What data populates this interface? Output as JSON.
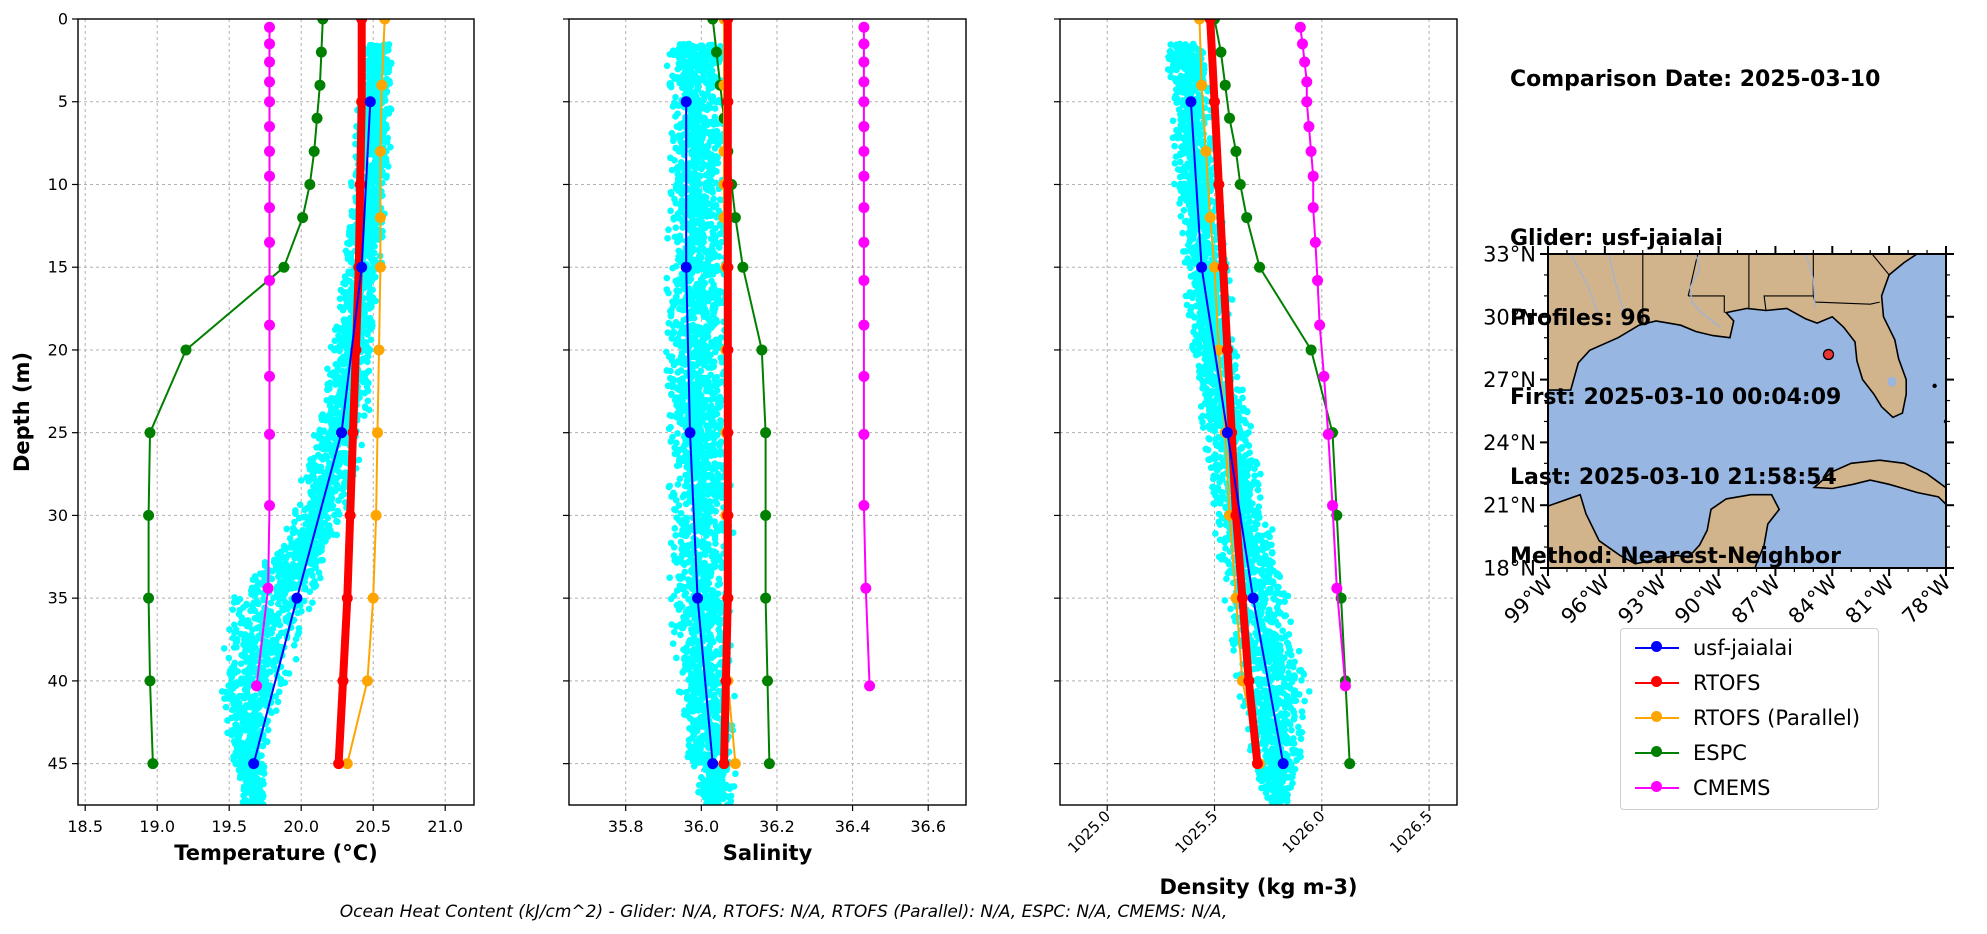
{
  "figure": {
    "info_lines": [
      "Comparison Date: 2025-03-10",
      "",
      "Glider: usf-jaialai",
      "Profiles: 96",
      "First: 2025-03-10 00:04:09",
      "Last: 2025-03-10 21:58:54",
      "Method: Nearest-Neighbor"
    ],
    "footer": "Ocean Heat Content (kJ/cm^2) - Glider: N/A,  RTOFS: N/A,  RTOFS (Parallel): N/A,  ESPC: N/A,  CMEMS: N/A,"
  },
  "legend": [
    {
      "name": "usf-jaialai",
      "color": "#0000ff"
    },
    {
      "name": "RTOFS",
      "color": "#ff0000"
    },
    {
      "name": "RTOFS (Parallel)",
      "color": "#ffa500"
    },
    {
      "name": "ESPC",
      "color": "#008000"
    },
    {
      "name": "CMEMS",
      "color": "#ff00ff"
    }
  ],
  "chart_data": [
    {
      "type": "line",
      "xlabel": "Temperature (°C)",
      "ylabel": "Depth (m)",
      "xlim": [
        18.45,
        21.2
      ],
      "ylim": [
        47.5,
        0
      ],
      "xticks": [
        "18.5",
        "19.0",
        "19.5",
        "20.0",
        "20.5",
        "21.0"
      ],
      "yticks": [
        "0",
        "5",
        "10",
        "15",
        "20",
        "25",
        "30",
        "35",
        "40",
        "45"
      ],
      "grid": true,
      "scatter_color": "#00ffff",
      "scatter_band": [
        [
          1.5,
          20.42,
          20.65
        ],
        [
          10,
          20.35,
          20.6
        ],
        [
          15,
          20.3,
          20.55
        ],
        [
          20,
          20.2,
          20.5
        ],
        [
          25,
          20.1,
          20.45
        ],
        [
          30,
          19.95,
          20.3
        ],
        [
          33,
          19.75,
          20.15
        ],
        [
          35,
          19.5,
          20.1
        ],
        [
          40,
          19.45,
          19.9
        ],
        [
          44,
          19.5,
          19.75
        ],
        [
          47.5,
          19.6,
          19.75
        ]
      ],
      "series": [
        {
          "name": "usf-jaialai",
          "color": "#0000ff",
          "lw": 2,
          "y": [
            5,
            15,
            25,
            35,
            45
          ],
          "values": [
            20.48,
            20.42,
            20.28,
            19.97,
            19.67
          ]
        },
        {
          "name": "RTOFS",
          "color": "#ff0000",
          "lw": 8,
          "y": [
            0,
            5,
            10,
            15,
            20,
            25,
            30,
            35,
            40,
            45
          ],
          "values": [
            20.42,
            20.42,
            20.41,
            20.4,
            20.38,
            20.36,
            20.34,
            20.32,
            20.29,
            20.26
          ]
        },
        {
          "name": "RTOFS (Parallel)",
          "color": "#ffa500",
          "lw": 2,
          "y": [
            0,
            4,
            8,
            12,
            15,
            20,
            25,
            30,
            35,
            40,
            45
          ],
          "values": [
            20.58,
            20.56,
            20.55,
            20.55,
            20.55,
            20.54,
            20.53,
            20.52,
            20.5,
            20.46,
            20.32
          ]
        },
        {
          "name": "ESPC",
          "color": "#008000",
          "lw": 2,
          "y": [
            0,
            2,
            4,
            6,
            8,
            10,
            12,
            15,
            20,
            25,
            30,
            35,
            40,
            45
          ],
          "values": [
            20.15,
            20.14,
            20.13,
            20.11,
            20.09,
            20.06,
            20.01,
            19.88,
            19.2,
            18.95,
            18.94,
            18.94,
            18.95,
            18.97
          ]
        },
        {
          "name": "CMEMS",
          "color": "#ff00ff",
          "lw": 2,
          "y": [
            0.5,
            1.5,
            2.6,
            3.8,
            5,
            6.5,
            8,
            9.5,
            11.4,
            13.5,
            15.8,
            18.5,
            21.6,
            25.1,
            29.4,
            34.4,
            40.3
          ],
          "values": [
            19.78,
            19.78,
            19.78,
            19.78,
            19.78,
            19.78,
            19.78,
            19.78,
            19.78,
            19.78,
            19.78,
            19.78,
            19.78,
            19.78,
            19.78,
            19.77,
            19.69
          ]
        }
      ]
    },
    {
      "type": "line",
      "xlabel": "Salinity",
      "ylabel": "",
      "xlim": [
        35.65,
        36.7
      ],
      "ylim": [
        47.5,
        0
      ],
      "xticks": [
        "35.8",
        "36.0",
        "36.2",
        "36.4",
        "36.6"
      ],
      "yticks": [],
      "grid": true,
      "scatter_color": "#00ffff",
      "scatter_band": [
        [
          1.5,
          35.91,
          36.06
        ],
        [
          10,
          35.91,
          36.07
        ],
        [
          20,
          35.91,
          36.07
        ],
        [
          30,
          35.92,
          36.08
        ],
        [
          38,
          35.92,
          36.08
        ],
        [
          44,
          35.96,
          36.09
        ],
        [
          47.5,
          36.0,
          36.08
        ]
      ],
      "series": [
        {
          "name": "usf-jaialai",
          "color": "#0000ff",
          "lw": 2,
          "y": [
            5,
            15,
            25,
            35,
            45
          ],
          "values": [
            35.96,
            35.96,
            35.97,
            35.99,
            36.03
          ]
        },
        {
          "name": "RTOFS",
          "color": "#ff0000",
          "lw": 8,
          "y": [
            0,
            5,
            10,
            15,
            20,
            25,
            30,
            35,
            40,
            45
          ],
          "values": [
            36.07,
            36.07,
            36.07,
            36.07,
            36.07,
            36.07,
            36.07,
            36.07,
            36.065,
            36.06
          ]
        },
        {
          "name": "RTOFS (Parallel)",
          "color": "#ffa500",
          "lw": 2,
          "y": [
            0,
            4,
            8,
            10,
            12,
            15,
            20,
            25,
            30,
            35,
            40,
            45
          ],
          "values": [
            36.06,
            36.06,
            36.06,
            36.06,
            36.06,
            36.065,
            36.065,
            36.065,
            36.065,
            36.07,
            36.07,
            36.09
          ]
        },
        {
          "name": "ESPC",
          "color": "#008000",
          "lw": 2,
          "y": [
            0,
            2,
            4,
            6,
            8,
            10,
            12,
            15,
            20,
            25,
            30,
            35,
            40,
            45
          ],
          "values": [
            36.03,
            36.04,
            36.05,
            36.06,
            36.07,
            36.08,
            36.09,
            36.11,
            36.16,
            36.17,
            36.17,
            36.17,
            36.175,
            36.18
          ]
        },
        {
          "name": "CMEMS",
          "color": "#ff00ff",
          "lw": 2,
          "y": [
            0.5,
            1.5,
            2.6,
            3.8,
            5,
            6.5,
            8,
            9.5,
            11.4,
            13.5,
            15.8,
            18.5,
            21.6,
            25.1,
            29.4,
            34.4,
            40.3
          ],
          "values": [
            36.43,
            36.43,
            36.43,
            36.43,
            36.43,
            36.43,
            36.43,
            36.43,
            36.43,
            36.43,
            36.43,
            36.43,
            36.43,
            36.43,
            36.43,
            36.435,
            36.445
          ]
        }
      ]
    },
    {
      "type": "line",
      "xlabel": "Density (kg m-3)",
      "ylabel": "",
      "xlim": [
        1024.78,
        1026.63
      ],
      "ylim": [
        47.5,
        0
      ],
      "xticks": [
        "1025.0",
        "1025.5",
        "1026.0",
        "1026.5"
      ],
      "yticks": [],
      "grid": true,
      "scatter_color": "#00ffff",
      "scatter_band": [
        [
          1.5,
          1025.28,
          1025.45
        ],
        [
          10,
          1025.32,
          1025.52
        ],
        [
          20,
          1025.4,
          1025.6
        ],
        [
          30,
          1025.5,
          1025.75
        ],
        [
          35,
          1025.55,
          1025.85
        ],
        [
          40,
          1025.6,
          1025.93
        ],
        [
          44,
          1025.65,
          1025.92
        ],
        [
          47.5,
          1025.75,
          1025.85
        ]
      ],
      "series": [
        {
          "name": "usf-jaialai",
          "color": "#0000ff",
          "lw": 2,
          "y": [
            5,
            15,
            25,
            35,
            45
          ],
          "values": [
            1025.39,
            1025.44,
            1025.56,
            1025.68,
            1025.82
          ]
        },
        {
          "name": "RTOFS",
          "color": "#ff0000",
          "lw": 8,
          "y": [
            0,
            5,
            10,
            15,
            20,
            25,
            30,
            35,
            40,
            45
          ],
          "values": [
            1025.48,
            1025.5,
            1025.52,
            1025.54,
            1025.56,
            1025.58,
            1025.6,
            1025.63,
            1025.66,
            1025.7
          ]
        },
        {
          "name": "RTOFS (Parallel)",
          "color": "#ffa500",
          "lw": 2,
          "y": [
            0,
            4,
            8,
            12,
            15,
            20,
            25,
            30,
            35,
            40,
            45
          ],
          "values": [
            1025.43,
            1025.44,
            1025.46,
            1025.48,
            1025.5,
            1025.52,
            1025.55,
            1025.57,
            1025.6,
            1025.63,
            1025.71
          ]
        },
        {
          "name": "ESPC",
          "color": "#008000",
          "lw": 2,
          "y": [
            0,
            2,
            4,
            6,
            8,
            10,
            12,
            15,
            20,
            25,
            30,
            35,
            40,
            45
          ],
          "values": [
            1025.5,
            1025.53,
            1025.55,
            1025.57,
            1025.6,
            1025.62,
            1025.65,
            1025.71,
            1025.95,
            1026.05,
            1026.07,
            1026.09,
            1026.11,
            1026.13
          ]
        },
        {
          "name": "CMEMS",
          "color": "#ff00ff",
          "lw": 2,
          "y": [
            0.5,
            1.5,
            2.6,
            3.8,
            5,
            6.5,
            8,
            9.5,
            11.4,
            13.5,
            15.8,
            18.5,
            21.6,
            25.1,
            29.4,
            34.4,
            40.3
          ],
          "values": [
            1025.9,
            1025.91,
            1025.92,
            1025.93,
            1025.93,
            1025.94,
            1025.95,
            1025.96,
            1025.96,
            1025.97,
            1025.98,
            1025.99,
            1026.01,
            1026.03,
            1026.05,
            1026.07,
            1026.11
          ]
        }
      ]
    },
    {
      "type": "map",
      "lon_range": [
        -99,
        -78
      ],
      "lat_range": [
        18,
        33
      ],
      "xticks": [
        "99°W",
        "96°W",
        "93°W",
        "90°W",
        "87°W",
        "84°W",
        "81°W",
        "78°W"
      ],
      "yticks": [
        "33°N",
        "30°N",
        "27°N",
        "24°N",
        "21°N",
        "18°N"
      ],
      "ocean_color": "#98b6e2",
      "land_color": "#d2b48c",
      "marker": {
        "lon": -84.2,
        "lat": 28.2,
        "color": "#e33"
      }
    }
  ]
}
